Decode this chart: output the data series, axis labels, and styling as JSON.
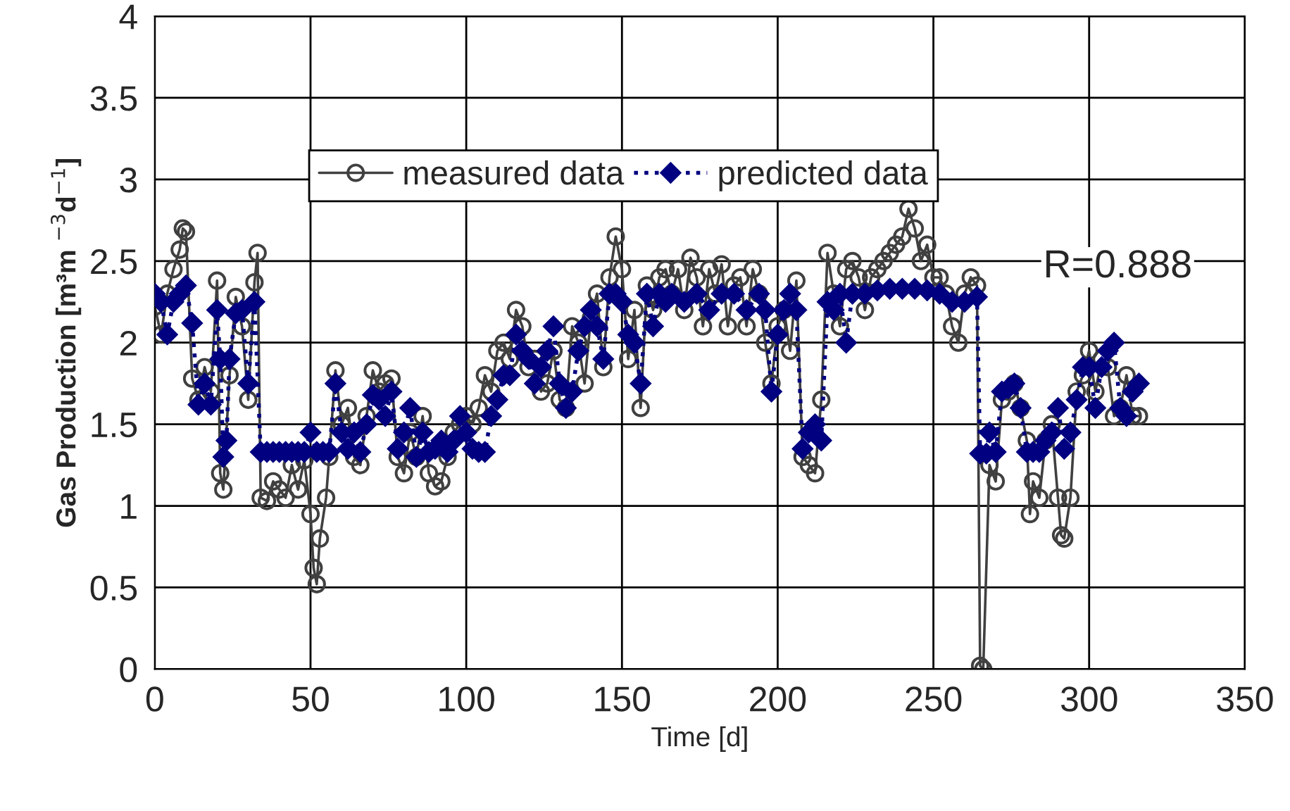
{
  "chart_data": {
    "type": "line",
    "xlabel": "Time [d]",
    "ylabel": "Gas Production [m³m $^{−3}$d$^{−1}$]",
    "xlim": [
      0,
      350
    ],
    "ylim": [
      0,
      4
    ],
    "xticks": [
      0,
      50,
      100,
      150,
      200,
      250,
      300,
      350
    ],
    "yticks": [
      0,
      0.5,
      1,
      1.5,
      2,
      2.5,
      3,
      3.5,
      4
    ],
    "grid": true,
    "legend": "top",
    "annotations": [
      "R=0.888"
    ],
    "series": [
      {
        "name": "measured data",
        "color": "#404040",
        "marker": "circle",
        "line_style": "solid",
        "x": [
          0,
          2,
          4,
          6,
          8,
          9,
          10,
          12,
          14,
          16,
          18,
          20,
          21,
          22,
          24,
          26,
          28,
          30,
          32,
          33,
          34,
          36,
          38,
          40,
          42,
          44,
          46,
          48,
          50,
          51,
          52,
          53,
          55,
          56,
          58,
          60,
          62,
          64,
          66,
          68,
          70,
          72,
          74,
          76,
          78,
          80,
          82,
          84,
          86,
          88,
          90,
          92,
          94,
          96,
          98,
          100,
          102,
          104,
          106,
          108,
          110,
          112,
          114,
          116,
          118,
          120,
          122,
          124,
          126,
          128,
          130,
          132,
          134,
          136,
          138,
          140,
          142,
          144,
          146,
          148,
          150,
          152,
          154,
          156,
          158,
          160,
          162,
          164,
          166,
          168,
          170,
          172,
          174,
          176,
          178,
          180,
          182,
          184,
          186,
          188,
          190,
          192,
          194,
          196,
          198,
          200,
          202,
          204,
          206,
          208,
          210,
          212,
          214,
          216,
          218,
          220,
          222,
          224,
          226,
          228,
          230,
          232,
          234,
          236,
          238,
          240,
          242,
          244,
          246,
          248,
          250,
          252,
          254,
          256,
          258,
          260,
          262,
          264,
          265,
          266,
          268,
          270,
          272,
          274,
          276,
          278,
          280,
          281,
          282,
          284,
          286,
          288,
          290,
          291,
          292,
          294,
          296,
          298,
          300,
          302,
          304,
          306,
          308,
          310,
          312,
          314,
          316
        ],
        "values": [
          2.22,
          2.05,
          2.3,
          2.45,
          2.57,
          2.7,
          2.68,
          1.78,
          1.65,
          1.85,
          1.7,
          2.38,
          1.2,
          1.1,
          1.8,
          2.28,
          2.1,
          1.65,
          2.37,
          2.55,
          1.05,
          1.03,
          1.15,
          1.1,
          1.05,
          1.25,
          1.1,
          1.28,
          0.95,
          0.62,
          0.52,
          0.8,
          1.05,
          1.3,
          1.83,
          1.5,
          1.6,
          1.3,
          1.25,
          1.55,
          1.83,
          1.7,
          1.75,
          1.78,
          1.3,
          1.2,
          1.45,
          1.3,
          1.55,
          1.2,
          1.12,
          1.15,
          1.3,
          1.45,
          1.5,
          1.55,
          1.5,
          1.6,
          1.8,
          1.7,
          1.95,
          2.0,
          1.9,
          2.2,
          2.1,
          1.85,
          1.9,
          1.7,
          1.75,
          1.95,
          1.65,
          1.6,
          2.1,
          2.0,
          1.75,
          2.15,
          2.3,
          1.85,
          2.4,
          2.65,
          2.45,
          1.9,
          2.2,
          1.6,
          2.35,
          2.2,
          2.4,
          2.45,
          2.3,
          2.45,
          2.2,
          2.52,
          2.4,
          2.1,
          2.45,
          2.3,
          2.48,
          2.1,
          2.35,
          2.4,
          2.1,
          2.45,
          2.3,
          2.0,
          1.75,
          2.1,
          2.2,
          1.95,
          2.38,
          1.3,
          1.25,
          1.2,
          1.65,
          2.55,
          2.3,
          2.1,
          2.45,
          2.5,
          2.4,
          2.2,
          2.4,
          2.45,
          2.5,
          2.55,
          2.6,
          2.65,
          2.82,
          2.7,
          2.5,
          2.6,
          2.4,
          2.4,
          2.3,
          2.1,
          2.0,
          2.3,
          2.4,
          2.35,
          0.02,
          0.0,
          1.25,
          1.15,
          1.65,
          1.7,
          1.75,
          1.6,
          1.4,
          0.95,
          1.15,
          1.05,
          1.4,
          1.5,
          1.05,
          0.82,
          0.8,
          1.05,
          1.7,
          1.8,
          1.95,
          1.7,
          1.9,
          1.85,
          1.55,
          1.6,
          1.8,
          1.55,
          1.55
        ]
      },
      {
        "name": "predicted data",
        "color": "#000080",
        "marker": "diamond",
        "line_style": "dotted",
        "x": [
          0,
          2,
          4,
          6,
          8,
          10,
          12,
          14,
          16,
          18,
          20,
          21,
          22,
          23,
          24,
          26,
          28,
          30,
          32,
          34,
          36,
          38,
          40,
          42,
          44,
          46,
          48,
          50,
          52,
          54,
          56,
          58,
          60,
          62,
          64,
          66,
          68,
          70,
          72,
          74,
          76,
          78,
          80,
          82,
          84,
          86,
          88,
          90,
          92,
          94,
          96,
          98,
          100,
          102,
          104,
          106,
          108,
          110,
          112,
          114,
          116,
          118,
          120,
          122,
          124,
          126,
          128,
          130,
          132,
          134,
          136,
          138,
          140,
          142,
          144,
          146,
          148,
          150,
          152,
          154,
          156,
          158,
          160,
          162,
          164,
          166,
          170,
          174,
          178,
          182,
          186,
          190,
          194,
          196,
          198,
          200,
          202,
          204,
          206,
          208,
          210,
          212,
          214,
          216,
          218,
          220,
          222,
          224,
          228,
          232,
          236,
          240,
          244,
          248,
          252,
          256,
          260,
          264,
          265,
          267,
          268,
          270,
          272,
          274,
          276,
          278,
          280,
          282,
          284,
          286,
          288,
          290,
          292,
          294,
          296,
          298,
          300,
          302,
          304,
          306,
          308,
          310,
          312,
          314,
          316
        ],
        "values": [
          2.3,
          2.25,
          2.05,
          2.25,
          2.3,
          2.35,
          2.12,
          1.62,
          1.75,
          1.62,
          2.2,
          1.9,
          1.3,
          1.4,
          1.9,
          2.18,
          2.2,
          1.75,
          2.25,
          1.33,
          1.33,
          1.33,
          1.33,
          1.33,
          1.33,
          1.33,
          1.33,
          1.45,
          1.33,
          1.33,
          1.33,
          1.75,
          1.45,
          1.35,
          1.45,
          1.33,
          1.5,
          1.68,
          1.65,
          1.55,
          1.7,
          1.35,
          1.45,
          1.6,
          1.3,
          1.45,
          1.33,
          1.35,
          1.4,
          1.33,
          1.4,
          1.55,
          1.45,
          1.35,
          1.33,
          1.33,
          1.55,
          1.65,
          1.8,
          1.8,
          2.05,
          1.95,
          1.9,
          1.75,
          1.85,
          1.95,
          2.1,
          1.75,
          1.6,
          1.7,
          1.95,
          2.1,
          2.2,
          2.1,
          1.9,
          2.3,
          2.3,
          2.25,
          2.05,
          2.0,
          1.75,
          2.3,
          2.1,
          2.3,
          2.25,
          2.3,
          2.25,
          2.3,
          2.2,
          2.3,
          2.3,
          2.2,
          2.3,
          2.2,
          1.7,
          2.05,
          2.2,
          2.3,
          2.2,
          1.35,
          1.45,
          1.5,
          1.4,
          2.25,
          2.2,
          2.3,
          2.0,
          2.3,
          2.3,
          2.32,
          2.33,
          2.33,
          2.33,
          2.32,
          2.3,
          2.25,
          2.25,
          2.28,
          1.32,
          1.32,
          1.45,
          1.33,
          1.7,
          1.72,
          1.75,
          1.6,
          1.33,
          1.33,
          1.33,
          1.4,
          1.45,
          1.6,
          1.35,
          1.45,
          1.65,
          1.85,
          1.85,
          1.6,
          1.85,
          1.95,
          2.0,
          1.6,
          1.55,
          1.7,
          1.75
        ]
      }
    ]
  }
}
